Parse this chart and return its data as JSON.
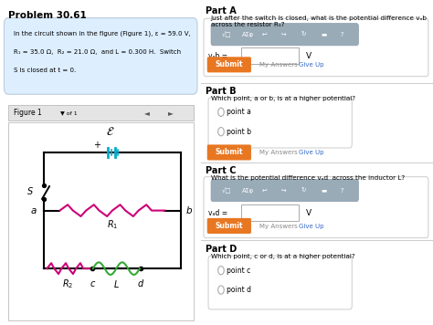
{
  "title": "Problem 30.61",
  "problem_line1": "In the circuit shown in the figure (Figure 1), ε = 59.0 V,",
  "problem_line2": "R₁ = 35.0 Ω,  R₂ = 21.0 Ω,  and L = 0.300 H.  Switch",
  "problem_line3": "S is closed at t = 0.",
  "figure_label": "Figure 1",
  "part_a_title": "Part A",
  "part_a_text": "Just after the switch is closed, what is the potential difference vₐb  across the resistor R₁?",
  "part_a_input_label": "vₐb =",
  "part_a_unit": "V",
  "part_b_title": "Part B",
  "part_b_text": "Which point, a or b, is at a higher potential?",
  "part_b_opt1": "point a",
  "part_b_opt2": "point b",
  "part_c_title": "Part C",
  "part_c_text": "What is the potential difference vₐd  across the inductor L?",
  "part_c_input_label": "vₐd =",
  "part_c_unit": "V",
  "part_d_title": "Part D",
  "part_d_text": "Which point, c or d, is at a higher potential?",
  "part_d_opt1": "point c",
  "part_d_opt2": "point d",
  "left_panel_bg": "#e8eef4",
  "right_panel_bg": "#ffffff",
  "problem_box_bg": "#ddeeff",
  "circuit_bg": "#ffffff",
  "resistor_color": "#cc0077",
  "inductor_color": "#33aa33",
  "battery_color": "#00aacc",
  "wire_color": "#000000",
  "submit_bg": "#e87722",
  "toolbar_bg": "#9aabb8",
  "input_box_bg": "#ffffff",
  "radio_color": "#aaaaaa",
  "separator_color": "#cccccc",
  "link_color": "#3366cc",
  "myanswers_color": "#888888",
  "give_up_color": "#3366cc"
}
